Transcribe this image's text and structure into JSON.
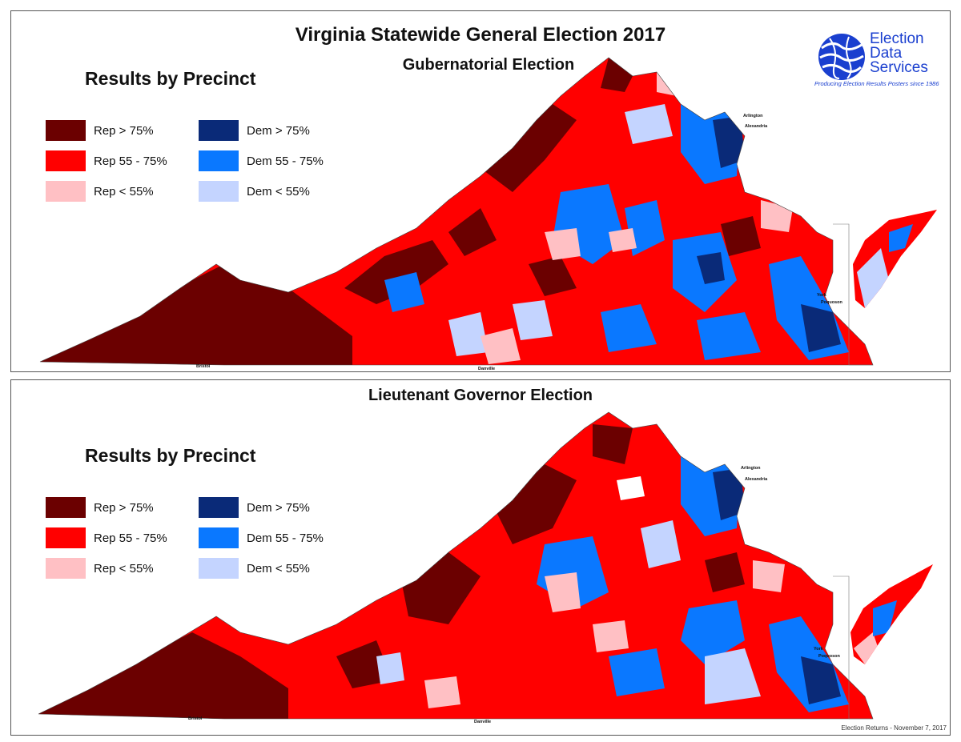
{
  "title": "Virginia Statewide General Election 2017",
  "logo": {
    "line1": "Election",
    "line2": "Data",
    "line3": "Services",
    "tagline": "Producing Election Results Posters since 1986"
  },
  "footer": "Election Returns - November 7, 2017",
  "colors": {
    "rep_75": "#6b0000",
    "rep_55_75": "#ff0000",
    "rep_lt55": "#ffc0c4",
    "dem_75": "#0a2a78",
    "dem_55_75": "#0a78ff",
    "dem_lt55": "#c4d4ff"
  },
  "legend": [
    {
      "label": "Rep > 75%",
      "color": "#6b0000"
    },
    {
      "label": "Rep 55 - 75%",
      "color": "#ff0000"
    },
    {
      "label": "Rep < 55%",
      "color": "#ffc0c4"
    },
    {
      "label": "Dem > 75%",
      "color": "#0a2a78"
    },
    {
      "label": "Dem 55 - 75%",
      "color": "#0a78ff"
    },
    {
      "label": "Dem < 55%",
      "color": "#c4d4ff"
    }
  ],
  "panels": [
    {
      "subtitle": "Gubernatorial Election",
      "section_title": "Results by Precinct",
      "labels": {
        "arlington": "Arlington",
        "alexandria": "Alexandria",
        "york": "York",
        "poquoson": "Poquoson",
        "bristol": "Bristol",
        "danville": "Danville"
      }
    },
    {
      "subtitle": "Lieutenant Governor Election",
      "section_title": "Results by Precinct",
      "labels": {
        "arlington": "Arlington",
        "alexandria": "Alexandria",
        "york": "York",
        "poquoson": "Poquoson",
        "bristol": "Bristol",
        "danville": "Danville"
      }
    }
  ]
}
